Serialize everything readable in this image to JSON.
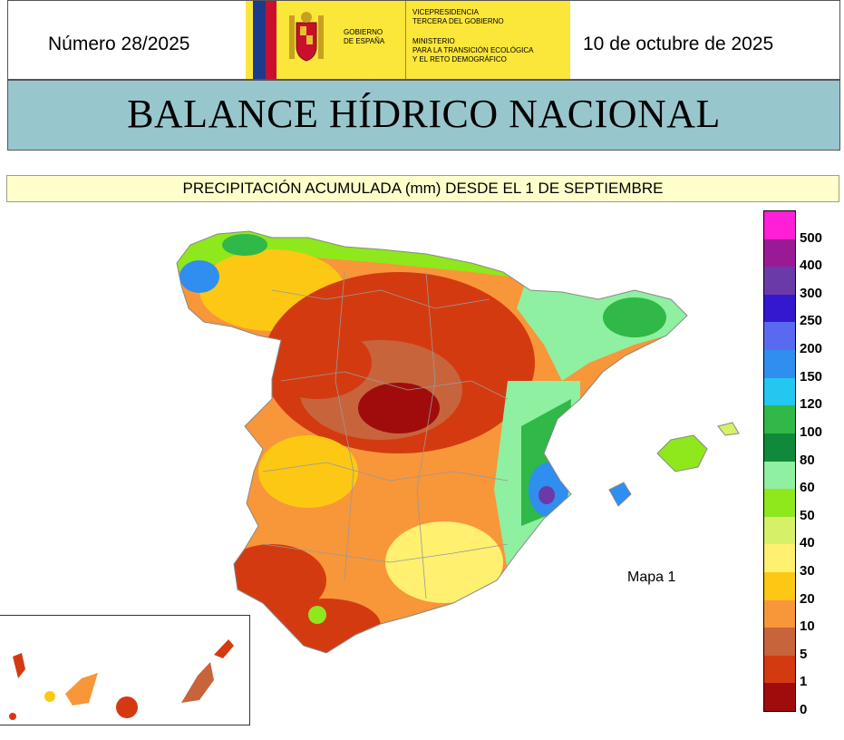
{
  "header": {
    "issue_number": "Número 28/2025",
    "date": "10 de octubre de 2025",
    "logo": {
      "government_label_1": "GOBIERNO",
      "government_label_2": "DE ESPAÑA",
      "vice_1": "VICEPRESIDENCIA",
      "vice_2": "TERCERA DEL GOBIERNO",
      "ministry_1": "MINISTERIO",
      "ministry_2": "PARA LA TRANSICIÓN ECOLÓGICA",
      "ministry_3": "Y EL RETO DEMOGRÁFICO"
    }
  },
  "title": "BALANCE HÍDRICO NACIONAL",
  "subtitle": "PRECIPITACIÓN ACUMULADA (mm) DESDE EL 1 DE SEPTIEMBRE",
  "map": {
    "label": "Mapa 1",
    "legend": [
      {
        "value": "500",
        "color": "#ff1fd6"
      },
      {
        "value": "400",
        "color": "#9a1a96"
      },
      {
        "value": "300",
        "color": "#6a3aa8"
      },
      {
        "value": "250",
        "color": "#3318d0"
      },
      {
        "value": "200",
        "color": "#5a6af0"
      },
      {
        "value": "150",
        "color": "#2f8ef0"
      },
      {
        "value": "120",
        "color": "#22c8f0"
      },
      {
        "value": "100",
        "color": "#30b848"
      },
      {
        "value": "80",
        "color": "#108a3a"
      },
      {
        "value": "60",
        "color": "#8ef0a0"
      },
      {
        "value": "50",
        "color": "#8ee81c"
      },
      {
        "value": "40",
        "color": "#d6f068"
      },
      {
        "value": "30",
        "color": "#fff070"
      },
      {
        "value": "20",
        "color": "#fcc814"
      },
      {
        "value": "10",
        "color": "#f8963a"
      },
      {
        "value": "5",
        "color": "#c8643c"
      },
      {
        "value": "1",
        "color": "#d43a10"
      },
      {
        "value": "0",
        "color": "#a00c0c"
      }
    ]
  }
}
